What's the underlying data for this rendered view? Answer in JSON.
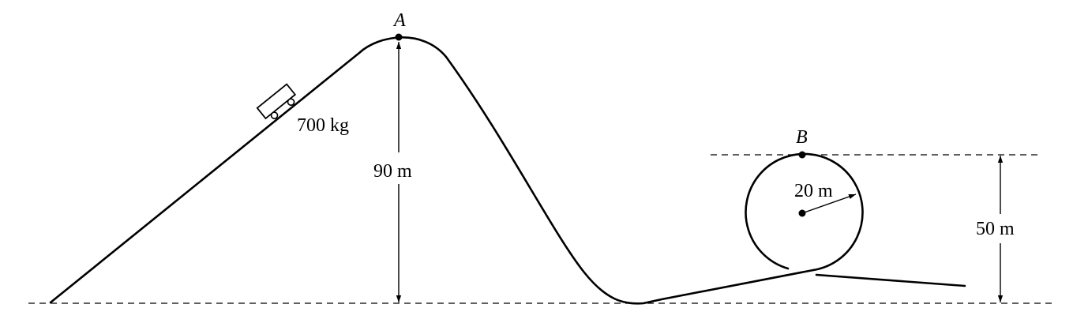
{
  "labels": {
    "point_a": "A",
    "point_b": "B",
    "mass": "700 kg",
    "height_a": "90 m",
    "radius": "20 m",
    "height_b": "50 m"
  },
  "colors": {
    "ink": "#000000",
    "background": "#ffffff"
  }
}
